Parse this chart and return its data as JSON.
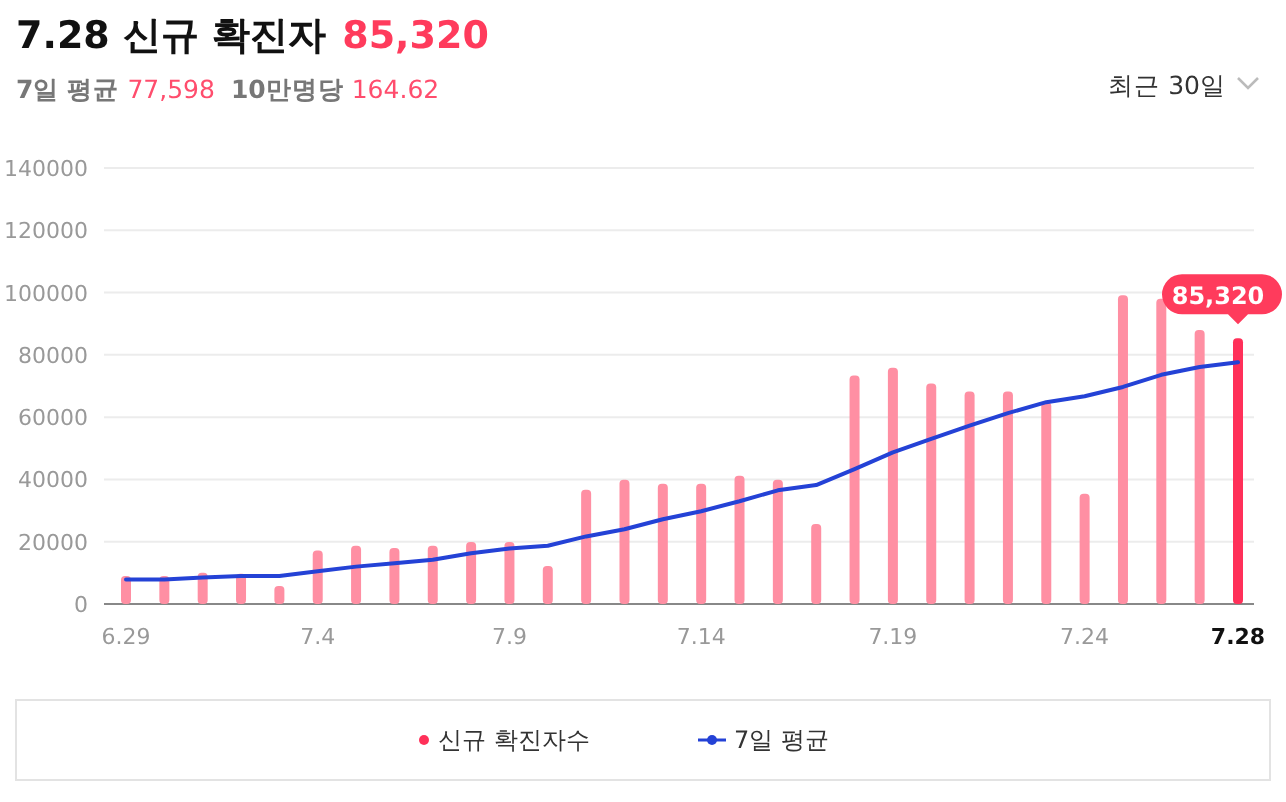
{
  "chart_data": {
    "type": "bar",
    "title": "7.28 신규 확진자",
    "subtitle": "7일 평균 77,598 10만명당 164.62",
    "annotations": [
      "85,320",
      "최근 30일",
      {
        "text": "85,320",
        "x": "7.28",
        "y": 85320
      }
    ],
    "categories": [
      "6.29",
      null,
      null,
      null,
      null,
      "7.4",
      null,
      null,
      null,
      null,
      "7.9",
      null,
      null,
      null,
      null,
      "7.14",
      null,
      null,
      null,
      null,
      "7.19",
      null,
      null,
      null,
      null,
      "7.24",
      null,
      null,
      null,
      "7.28"
    ],
    "series": [
      {
        "name": "신규 확진자수",
        "color": "#ff3059",
        "colors": [
          "#ff8fa3",
          "#ff8fa3",
          "#ff8fa3",
          "#ff8fa3",
          "#ff8fa3",
          "#ff8fa3",
          "#ff8fa3",
          "#ff8fa3",
          "#ff8fa3",
          "#ff8fa3",
          "#ff8fa3",
          "#ff8fa3",
          "#ff8fa3",
          "#ff8fa3",
          "#ff8fa3",
          "#ff8fa3",
          "#ff8fa3",
          "#ff8fa3",
          "#ff8fa3",
          "#ff8fa3",
          "#ff8fa3",
          "#ff8fa3",
          "#ff8fa3",
          "#ff8fa3",
          "#ff8fa3",
          "#ff8fa3",
          "#ff8fa3",
          "#ff8fa3",
          "#ff8fa3",
          "#ff3059"
        ],
        "values": [
          9000,
          9000,
          10000,
          9700,
          5800,
          17200,
          18700,
          18000,
          18700,
          19900,
          19900,
          12200,
          36700,
          39900,
          38600,
          38600,
          41200,
          39900,
          25700,
          73400,
          75900,
          70800,
          68200,
          68200,
          64800,
          35400,
          99100,
          98000,
          88000,
          85320
        ]
      },
      {
        "name": "7일 평균",
        "type": "line",
        "color": "#2442d6",
        "values": [
          7900,
          7900,
          8500,
          9000,
          9000,
          10500,
          12000,
          13100,
          14200,
          16300,
          17800,
          18700,
          21700,
          24000,
          27200,
          29800,
          33000,
          36500,
          38200,
          43300,
          48700,
          53000,
          57300,
          61300,
          64800,
          66700,
          69700,
          73600,
          76100,
          77598
        ]
      }
    ],
    "ylim": [
      0,
      140000
    ],
    "yticks": [
      0,
      20000,
      40000,
      60000,
      80000,
      100000,
      120000,
      140000
    ],
    "grid": "y",
    "legend": "bottom",
    "marker": "none",
    "line_style": "solid"
  }
}
